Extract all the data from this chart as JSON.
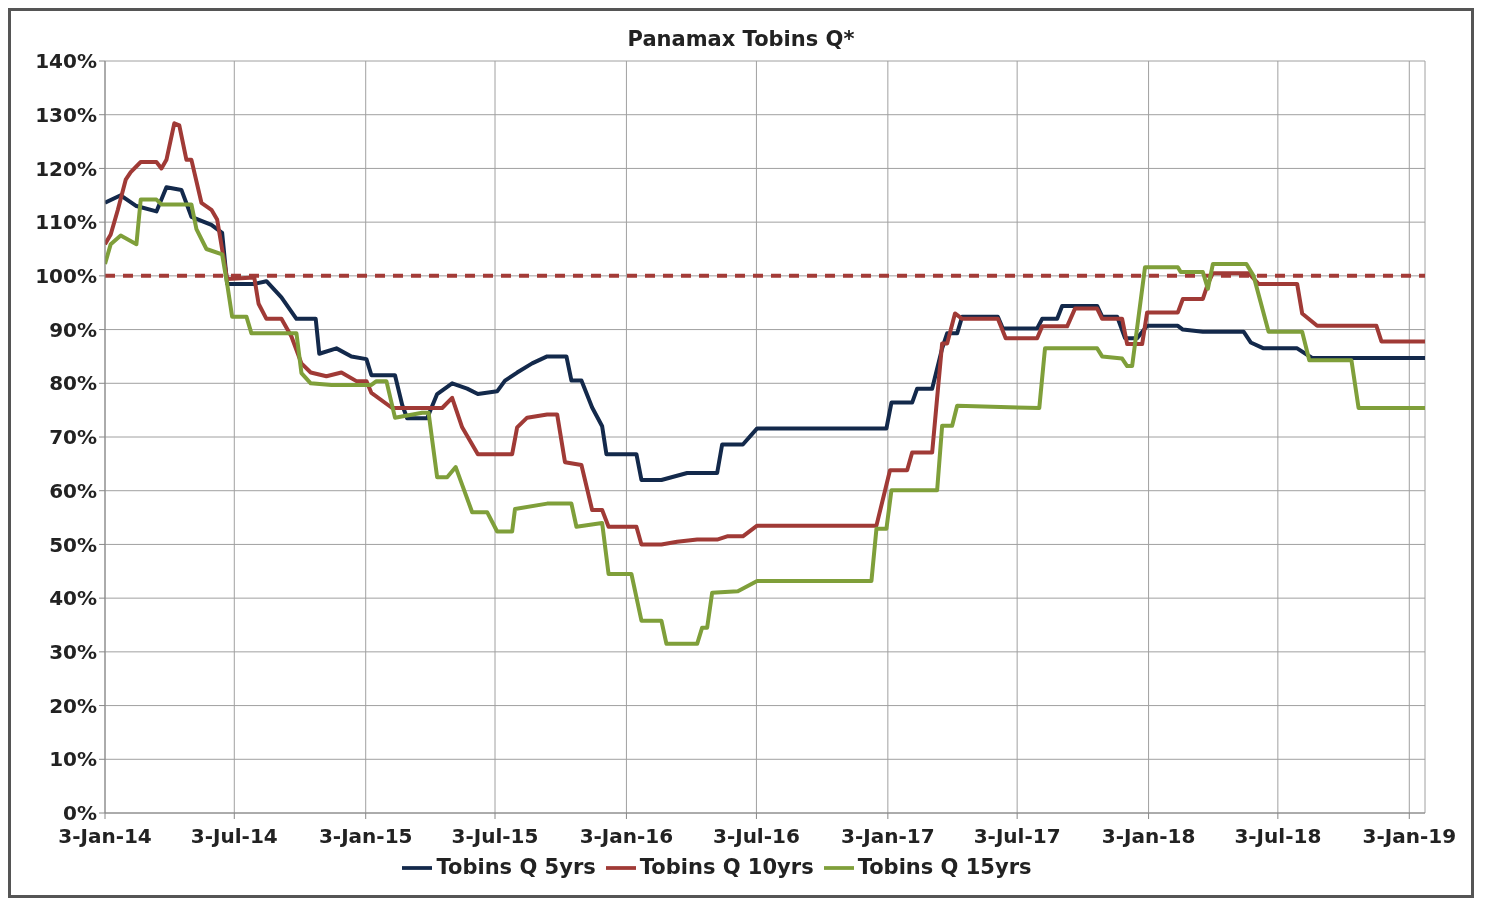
{
  "chart_data": {
    "type": "line",
    "title": "Panamax Tobins Q*",
    "xlim": [
      "2014-01-03",
      "2019-01-25"
    ],
    "ylim": [
      0,
      140
    ],
    "xticks": [
      {
        "value": "2014-01-03",
        "label": "3-Jan-14"
      },
      {
        "value": "2014-07-03",
        "label": "3-Jul-14"
      },
      {
        "value": "2015-01-03",
        "label": "3-Jan-15"
      },
      {
        "value": "2015-07-03",
        "label": "3-Jul-15"
      },
      {
        "value": "2016-01-03",
        "label": "3-Jan-16"
      },
      {
        "value": "2016-07-03",
        "label": "3-Jul-16"
      },
      {
        "value": "2017-01-03",
        "label": "3-Jan-17"
      },
      {
        "value": "2017-07-03",
        "label": "3-Jul-17"
      },
      {
        "value": "2018-01-03",
        "label": "3-Jan-18"
      },
      {
        "value": "2018-07-03",
        "label": "3-Jul-18"
      },
      {
        "value": "2019-01-03",
        "label": "3-Jan-19"
      }
    ],
    "yticks": [
      {
        "value": 0,
        "label": "0%"
      },
      {
        "value": 10,
        "label": "10%"
      },
      {
        "value": 20,
        "label": "20%"
      },
      {
        "value": 30,
        "label": "30%"
      },
      {
        "value": 40,
        "label": "40%"
      },
      {
        "value": 50,
        "label": "50%"
      },
      {
        "value": 60,
        "label": "60%"
      },
      {
        "value": 70,
        "label": "70%"
      },
      {
        "value": 80,
        "label": "80%"
      },
      {
        "value": 90,
        "label": "90%"
      },
      {
        "value": 100,
        "label": "100%"
      },
      {
        "value": 110,
        "label": "110%"
      },
      {
        "value": 120,
        "label": "120%"
      },
      {
        "value": 130,
        "label": "130%"
      },
      {
        "value": 140,
        "label": "140%"
      }
    ],
    "grid": true,
    "legend": "bottom",
    "marker": "none",
    "line_style": "solid",
    "ref_lines": [
      {
        "axis": "y",
        "value": 100,
        "color": "#a33b37",
        "line_style": "dashed"
      }
    ],
    "series": [
      {
        "name": "Tobins Q 5yrs",
        "color": "#13294b",
        "x": [
          "2014-01-03",
          "2014-01-25",
          "2014-02-16",
          "2014-03-16",
          "2014-03-30",
          "2014-04-20",
          "2014-05-04",
          "2014-06-01",
          "2014-06-16",
          "2014-06-23",
          "2014-07-31",
          "2014-08-17",
          "2014-09-07",
          "2014-09-28",
          "2014-10-25",
          "2014-10-30",
          "2014-11-23",
          "2014-12-14",
          "2015-01-04",
          "2015-01-11",
          "2015-02-13",
          "2015-02-23",
          "2015-03-02",
          "2015-03-30",
          "2015-04-13",
          "2015-05-04",
          "2015-05-25",
          "2015-06-09",
          "2015-07-06",
          "2015-07-17",
          "2015-08-03",
          "2015-08-24",
          "2015-09-14",
          "2015-10-11",
          "2015-10-18",
          "2015-11-01",
          "2015-11-16",
          "2015-11-30",
          "2015-12-06",
          "2016-01-17",
          "2016-01-24",
          "2016-02-21",
          "2016-03-28",
          "2016-05-09",
          "2016-05-16",
          "2016-06-14",
          "2016-07-04",
          "2017-01-01",
          "2017-01-08",
          "2017-02-06",
          "2017-02-13",
          "2017-03-06",
          "2017-03-20",
          "2017-03-27",
          "2017-04-10",
          "2017-04-17",
          "2017-06-06",
          "2017-06-13",
          "2017-07-31",
          "2017-08-07",
          "2017-08-28",
          "2017-09-04",
          "2017-10-23",
          "2017-10-30",
          "2017-11-20",
          "2017-12-01",
          "2017-12-18",
          "2018-01-01",
          "2018-02-13",
          "2018-02-20",
          "2018-03-20",
          "2018-05-16",
          "2018-05-26",
          "2018-06-13",
          "2018-07-30",
          "2018-08-20",
          "2019-01-25"
        ],
        "values": [
          113.6,
          115,
          113,
          112,
          116.5,
          116,
          111,
          109.5,
          108,
          98.5,
          98.5,
          99,
          96,
          92,
          92,
          85.5,
          86.5,
          85,
          84.5,
          81.5,
          81.5,
          76,
          73.5,
          73.5,
          78,
          80,
          79,
          78,
          78.5,
          80.5,
          82,
          83.7,
          85,
          85,
          80.5,
          80.5,
          75.5,
          72,
          66.8,
          66.8,
          62,
          62,
          63.3,
          63.3,
          68.6,
          68.6,
          71.6,
          71.6,
          76.4,
          76.4,
          79,
          79,
          86.5,
          89.3,
          89.3,
          92.4,
          92.4,
          90.2,
          90.2,
          92,
          92,
          94.4,
          94.4,
          92.4,
          92.4,
          88.4,
          88.4,
          90.7,
          90.7,
          90,
          89.6,
          89.6,
          87.6,
          86.5,
          86.5,
          84.7,
          84.7
        ]
      },
      {
        "name": "Tobins Q 10yrs",
        "color": "#a03a36",
        "x": [
          "2014-01-03",
          "2014-01-11",
          "2014-01-21",
          "2014-02-01",
          "2014-02-08",
          "2014-02-22",
          "2014-03-16",
          "2014-03-23",
          "2014-03-30",
          "2014-04-10",
          "2014-04-17",
          "2014-04-27",
          "2014-05-04",
          "2014-05-18",
          "2014-06-01",
          "2014-06-09",
          "2014-06-23",
          "2014-07-31",
          "2014-08-06",
          "2014-08-17",
          "2014-09-07",
          "2014-09-21",
          "2014-10-05",
          "2014-10-18",
          "2014-11-09",
          "2014-11-30",
          "2014-12-21",
          "2015-01-04",
          "2015-01-11",
          "2015-02-09",
          "2015-04-20",
          "2015-05-04",
          "2015-05-18",
          "2015-06-09",
          "2015-07-27",
          "2015-08-03",
          "2015-08-17",
          "2015-09-14",
          "2015-09-28",
          "2015-10-09",
          "2015-11-01",
          "2015-11-16",
          "2015-11-30",
          "2015-12-09",
          "2016-01-17",
          "2016-01-24",
          "2016-02-21",
          "2016-03-14",
          "2016-04-11",
          "2016-05-09",
          "2016-05-23",
          "2016-06-14",
          "2016-07-04",
          "2016-12-18",
          "2017-01-06",
          "2017-01-30",
          "2017-02-06",
          "2017-03-06",
          "2017-03-13",
          "2017-03-20",
          "2017-03-27",
          "2017-04-07",
          "2017-04-17",
          "2017-06-06",
          "2017-06-17",
          "2017-07-31",
          "2017-08-07",
          "2017-09-11",
          "2017-09-22",
          "2017-10-23",
          "2017-10-30",
          "2017-11-27",
          "2017-12-04",
          "2017-12-25",
          "2018-01-01",
          "2018-02-13",
          "2018-02-20",
          "2018-03-20",
          "2018-03-27",
          "2018-04-03",
          "2018-05-23",
          "2018-06-06",
          "2018-07-30",
          "2018-08-06",
          "2018-08-27",
          "2018-11-18",
          "2018-11-25",
          "2019-01-25"
        ],
        "values": [
          105.9,
          107.7,
          112.3,
          117.9,
          119.3,
          121.2,
          121.2,
          120,
          121.6,
          128.4,
          128,
          121.6,
          121.6,
          113.6,
          112.3,
          110.5,
          99.4,
          99.7,
          94.8,
          92,
          92,
          88.7,
          83.7,
          82,
          81.3,
          82,
          80.4,
          80.4,
          78.2,
          75.4,
          75.4,
          77.3,
          71.8,
          66.8,
          66.8,
          71.8,
          73.6,
          74.2,
          74.2,
          65.3,
          64.8,
          56.4,
          56.4,
          53.3,
          53.3,
          50,
          50,
          50.5,
          50.9,
          50.9,
          51.5,
          51.5,
          53.5,
          53.5,
          63.8,
          63.8,
          67.1,
          67.1,
          77.3,
          87.4,
          87.4,
          93,
          92,
          92,
          88.4,
          88.4,
          90.6,
          90.6,
          93.9,
          93.9,
          92,
          92,
          87.3,
          87.3,
          93.2,
          93.2,
          95.7,
          95.7,
          98.5,
          100.5,
          100.5,
          98.5,
          98.5,
          93,
          90.7,
          90.7,
          87.8,
          87.8
        ]
      },
      {
        "name": "Tobins Q 15yrs",
        "color": "#7f9f3a",
        "x": [
          "2014-01-03",
          "2014-01-11",
          "2014-01-25",
          "2014-02-16",
          "2014-02-22",
          "2014-03-16",
          "2014-03-23",
          "2014-05-04",
          "2014-05-11",
          "2014-05-25",
          "2014-06-16",
          "2014-06-23",
          "2014-06-30",
          "2014-07-20",
          "2014-07-27",
          "2014-09-28",
          "2014-10-05",
          "2014-10-18",
          "2014-11-16",
          "2015-01-11",
          "2015-01-18",
          "2015-02-01",
          "2015-02-13",
          "2015-03-23",
          "2015-04-01",
          "2015-04-13",
          "2015-04-27",
          "2015-05-09",
          "2015-06-01",
          "2015-06-22",
          "2015-07-06",
          "2015-07-27",
          "2015-07-31",
          "2015-09-14",
          "2015-10-18",
          "2015-10-25",
          "2015-11-30",
          "2015-12-09",
          "2016-01-10",
          "2016-01-24",
          "2016-02-21",
          "2016-02-28",
          "2016-04-11",
          "2016-04-18",
          "2016-04-25",
          "2016-05-02",
          "2016-06-07",
          "2016-07-04",
          "2016-12-11",
          "2016-12-18",
          "2017-01-01",
          "2017-01-08",
          "2017-03-13",
          "2017-03-20",
          "2017-04-03",
          "2017-04-10",
          "2017-08-03",
          "2017-08-11",
          "2017-10-23",
          "2017-10-30",
          "2017-11-27",
          "2017-12-04",
          "2017-12-11",
          "2017-12-29",
          "2018-02-13",
          "2018-02-17",
          "2018-03-20",
          "2018-03-27",
          "2018-04-03",
          "2018-05-20",
          "2018-05-30",
          "2018-06-20",
          "2018-08-06",
          "2018-08-16",
          "2018-10-14",
          "2018-10-24",
          "2019-01-25"
        ],
        "values": [
          102.2,
          105.9,
          107.5,
          105.9,
          114.2,
          114.2,
          113.3,
          113.3,
          108.7,
          105,
          104,
          98.5,
          92.4,
          92.4,
          89.3,
          89.3,
          81.9,
          80,
          79.7,
          79.7,
          80.4,
          80.4,
          73.6,
          74.5,
          74.5,
          62.5,
          62.5,
          64.4,
          56,
          56,
          52.4,
          52.4,
          56.6,
          57.6,
          57.6,
          53.3,
          54,
          44.5,
          44.5,
          35.8,
          35.8,
          31.5,
          31.5,
          34.5,
          34.5,
          41,
          41.3,
          43.2,
          43.2,
          52.9,
          52.9,
          60.1,
          60.1,
          72.1,
          72.1,
          75.8,
          75.4,
          86.5,
          86.5,
          85,
          84.6,
          83.2,
          83.2,
          101.6,
          101.6,
          100.7,
          100.7,
          97.6,
          102.2,
          102.2,
          100,
          89.6,
          89.6,
          84.3,
          84.3,
          75.4,
          75.4
        ]
      }
    ]
  }
}
